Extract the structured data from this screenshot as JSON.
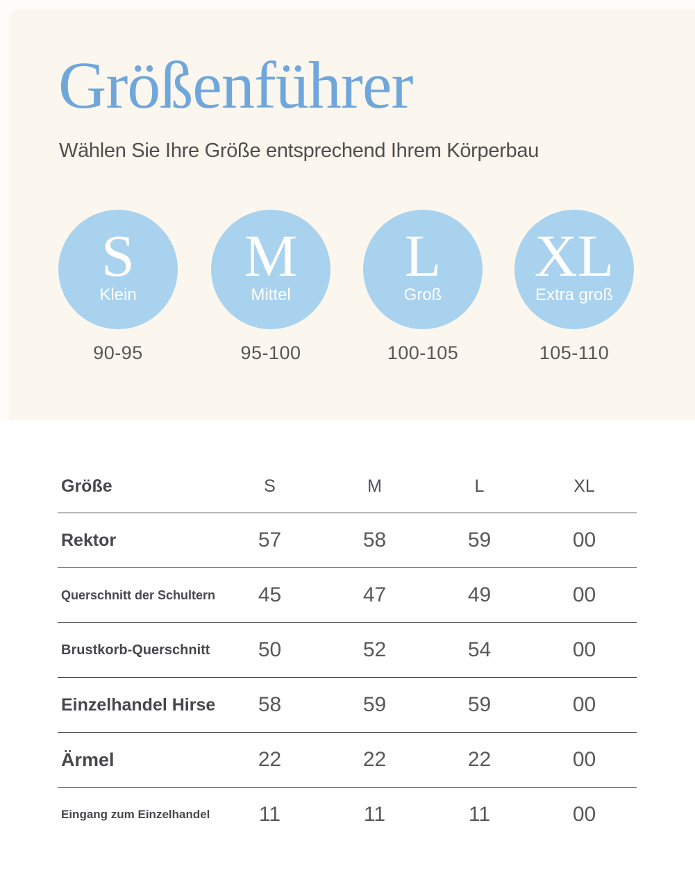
{
  "colors": {
    "cream_panel": "#fcf7ee",
    "page_strip": "#fefcf8",
    "title_blue": "#6fa7db",
    "circle_blue": "#a9d2ef",
    "text_dark": "#47474c",
    "text_mid": "#58585c"
  },
  "hero": {
    "title": "Größenführer",
    "subtitle": "Wählen Sie Ihre Größe entsprechend Ihrem Körperbau",
    "sizes": [
      {
        "letter": "S",
        "label": "Klein",
        "range": "90-95"
      },
      {
        "letter": "M",
        "label": "Mittel",
        "range": "95-100"
      },
      {
        "letter": "L",
        "label": "Groß",
        "range": "100-105"
      },
      {
        "letter": "XL",
        "label": "Extra groß",
        "range": "105-110"
      }
    ]
  },
  "table": {
    "headers": [
      "Größe",
      "S",
      "M",
      "L",
      "XL"
    ],
    "rows": [
      {
        "label": "Rektor",
        "values": [
          "57",
          "58",
          "59",
          "00"
        ]
      },
      {
        "label": "Querschnitt der Schultern",
        "values": [
          "45",
          "47",
          "49",
          "00"
        ]
      },
      {
        "label": "Brustkorb-Querschnitt",
        "values": [
          "50",
          "52",
          "54",
          "00"
        ]
      },
      {
        "label": "Einzelhandel Hirse",
        "values": [
          "58",
          "59",
          "59",
          "00"
        ]
      },
      {
        "label": "Ärmel",
        "values": [
          "22",
          "22",
          "22",
          "00"
        ]
      },
      {
        "label": "Eingang zum Einzelhandel",
        "values": [
          "11",
          "11",
          "11",
          "00"
        ]
      }
    ]
  }
}
